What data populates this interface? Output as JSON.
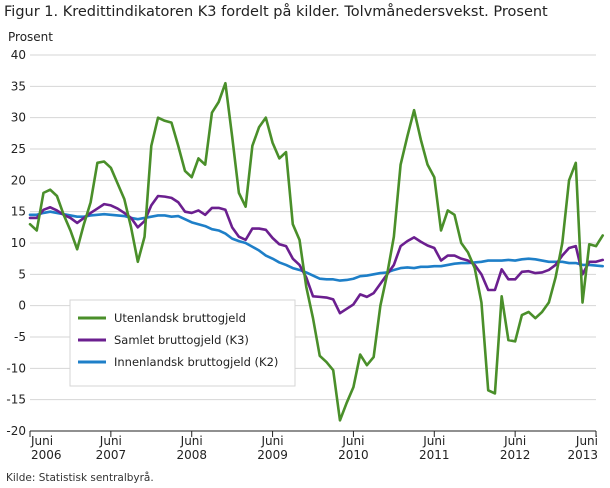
{
  "chart_data": {
    "type": "line",
    "title": "Figur 1. Kredittindikatoren K3 fordelt på kilder. Tolvmånedersvekst. Prosent",
    "ylabel": "Prosent",
    "xlabel": "",
    "source": "Kilde: Statistisk sentralbyrå.",
    "ylim": [
      -20,
      40
    ],
    "yticks": [
      "40",
      "35",
      "30",
      "25",
      "20",
      "15",
      "10",
      "5",
      "0",
      "-5",
      "-10",
      "-15",
      "-20"
    ],
    "x_start": "2006-06",
    "x_end": "2013-06",
    "xticks": [
      {
        "month": "Juni",
        "year": "2006"
      },
      {
        "month": "Juni",
        "year": "2007"
      },
      {
        "month": "Juni",
        "year": "2008"
      },
      {
        "month": "Juni",
        "year": "2009"
      },
      {
        "month": "Juni",
        "year": "2010"
      },
      {
        "month": "Juni",
        "year": "2011"
      },
      {
        "month": "Juni",
        "year": "2012"
      },
      {
        "month": "Juni",
        "year": "2013"
      }
    ],
    "grid": true,
    "legend_position": "bottom-left",
    "series": [
      {
        "name": "Utenlandsk bruttogjeld",
        "color": "#4a8f2a",
        "values": [
          [
            0,
            13
          ],
          [
            1,
            12
          ],
          [
            2,
            18
          ],
          [
            3,
            18.5
          ],
          [
            4,
            17.5
          ],
          [
            5,
            14.5
          ],
          [
            6,
            12
          ],
          [
            7,
            9
          ],
          [
            8,
            13
          ],
          [
            9,
            16.5
          ],
          [
            10,
            22.8
          ],
          [
            11,
            23
          ],
          [
            12,
            22
          ],
          [
            13,
            19.5
          ],
          [
            14,
            17
          ],
          [
            15,
            12.5
          ],
          [
            16,
            7
          ],
          [
            17,
            11
          ],
          [
            18,
            25.5
          ],
          [
            19,
            30
          ],
          [
            20,
            29.5
          ],
          [
            21,
            29.2
          ],
          [
            22,
            25.5
          ],
          [
            23,
            21.5
          ],
          [
            24,
            20.5
          ],
          [
            25,
            23.5
          ],
          [
            26,
            22.5
          ],
          [
            27,
            30.8
          ],
          [
            28,
            32.5
          ],
          [
            29,
            35.5
          ],
          [
            30,
            27
          ],
          [
            31,
            18
          ],
          [
            32,
            15.8
          ],
          [
            33,
            25.5
          ],
          [
            34,
            28.5
          ],
          [
            35,
            30
          ],
          [
            36,
            26
          ],
          [
            37,
            23.5
          ],
          [
            38,
            24.5
          ],
          [
            39,
            13
          ],
          [
            40,
            10.5
          ],
          [
            41,
            3
          ],
          [
            42,
            -2
          ],
          [
            43,
            -8
          ],
          [
            44,
            -9
          ],
          [
            45,
            -10.3
          ],
          [
            46,
            -18.3
          ],
          [
            47,
            -15.5
          ],
          [
            48,
            -13
          ],
          [
            49,
            -7.8
          ],
          [
            50,
            -9.5
          ],
          [
            51,
            -8.2
          ],
          [
            52,
            0
          ],
          [
            53,
            5
          ],
          [
            54,
            11
          ],
          [
            55,
            22.5
          ],
          [
            56,
            27
          ],
          [
            57,
            31.2
          ],
          [
            58,
            26.5
          ],
          [
            59,
            22.5
          ],
          [
            60,
            20.5
          ],
          [
            61,
            12
          ],
          [
            62,
            15.2
          ],
          [
            63,
            14.5
          ],
          [
            64,
            10
          ],
          [
            65,
            8.5
          ],
          [
            66,
            6
          ],
          [
            67,
            0.5
          ],
          [
            68,
            -13.5
          ],
          [
            69,
            -14
          ],
          [
            70,
            1.5
          ],
          [
            71,
            -5.5
          ],
          [
            72,
            -5.7
          ],
          [
            73,
            -1.5
          ],
          [
            74,
            -1
          ],
          [
            75,
            -2
          ],
          [
            76,
            -1
          ],
          [
            77,
            0.5
          ],
          [
            78,
            4.5
          ],
          [
            79,
            10
          ],
          [
            80,
            20
          ],
          [
            81,
            22.8
          ],
          [
            82,
            0.5
          ],
          [
            83,
            9.8
          ],
          [
            84,
            9.5
          ],
          [
            85,
            11.2
          ]
        ]
      },
      {
        "name": "Samlet bruttogjeld (K3)",
        "color": "#6b1f8f",
        "values": [
          [
            0,
            14
          ],
          [
            1,
            14
          ],
          [
            2,
            15.3
          ],
          [
            3,
            15.7
          ],
          [
            4,
            15.2
          ],
          [
            5,
            14.5
          ],
          [
            6,
            14
          ],
          [
            7,
            13.2
          ],
          [
            8,
            14
          ],
          [
            9,
            14.8
          ],
          [
            10,
            15.5
          ],
          [
            11,
            16.2
          ],
          [
            12,
            16
          ],
          [
            13,
            15.5
          ],
          [
            14,
            14.8
          ],
          [
            15,
            14
          ],
          [
            16,
            12.5
          ],
          [
            17,
            13.5
          ],
          [
            18,
            16
          ],
          [
            19,
            17.5
          ],
          [
            20,
            17.4
          ],
          [
            21,
            17.2
          ],
          [
            22,
            16.5
          ],
          [
            23,
            15
          ],
          [
            24,
            14.8
          ],
          [
            25,
            15.2
          ],
          [
            26,
            14.5
          ],
          [
            27,
            15.6
          ],
          [
            28,
            15.6
          ],
          [
            29,
            15.3
          ],
          [
            30,
            12.5
          ],
          [
            31,
            11
          ],
          [
            32,
            10.5
          ],
          [
            33,
            12.3
          ],
          [
            34,
            12.3
          ],
          [
            35,
            12.1
          ],
          [
            36,
            10.8
          ],
          [
            37,
            9.8
          ],
          [
            38,
            9.5
          ],
          [
            39,
            7.5
          ],
          [
            40,
            6.5
          ],
          [
            41,
            4.5
          ],
          [
            42,
            1.5
          ],
          [
            43,
            1.4
          ],
          [
            44,
            1.3
          ],
          [
            45,
            1
          ],
          [
            46,
            -1.2
          ],
          [
            47,
            -0.5
          ],
          [
            48,
            0.2
          ],
          [
            49,
            1.8
          ],
          [
            50,
            1.4
          ],
          [
            51,
            2
          ],
          [
            52,
            3.5
          ],
          [
            53,
            5
          ],
          [
            54,
            6.5
          ],
          [
            55,
            9.5
          ],
          [
            56,
            10.3
          ],
          [
            57,
            10.9
          ],
          [
            58,
            10.2
          ],
          [
            59,
            9.6
          ],
          [
            60,
            9.2
          ],
          [
            61,
            7.2
          ],
          [
            62,
            8
          ],
          [
            63,
            8
          ],
          [
            64,
            7.5
          ],
          [
            65,
            7.2
          ],
          [
            66,
            6.5
          ],
          [
            67,
            5
          ],
          [
            68,
            2.5
          ],
          [
            69,
            2.5
          ],
          [
            70,
            5.8
          ],
          [
            71,
            4.2
          ],
          [
            72,
            4.2
          ],
          [
            73,
            5.4
          ],
          [
            74,
            5.5
          ],
          [
            75,
            5.2
          ],
          [
            76,
            5.3
          ],
          [
            77,
            5.7
          ],
          [
            78,
            6.5
          ],
          [
            79,
            8
          ],
          [
            80,
            9.2
          ],
          [
            81,
            9.5
          ],
          [
            82,
            5
          ],
          [
            83,
            7
          ],
          [
            84,
            7
          ],
          [
            85,
            7.3
          ]
        ]
      },
      {
        "name": "Innenlandsk bruttogjeld (K2)",
        "color": "#1e7fc8",
        "values": [
          [
            0,
            14.5
          ],
          [
            1,
            14.5
          ],
          [
            2,
            14.8
          ],
          [
            3,
            15
          ],
          [
            4,
            14.8
          ],
          [
            5,
            14.6
          ],
          [
            6,
            14.4
          ],
          [
            7,
            14.2
          ],
          [
            8,
            14.2
          ],
          [
            9,
            14.4
          ],
          [
            10,
            14.5
          ],
          [
            11,
            14.6
          ],
          [
            12,
            14.5
          ],
          [
            13,
            14.4
          ],
          [
            14,
            14.3
          ],
          [
            15,
            14
          ],
          [
            16,
            13.8
          ],
          [
            17,
            14
          ],
          [
            18,
            14.2
          ],
          [
            19,
            14.4
          ],
          [
            20,
            14.4
          ],
          [
            21,
            14.2
          ],
          [
            22,
            14.3
          ],
          [
            23,
            13.8
          ],
          [
            24,
            13.3
          ],
          [
            25,
            13
          ],
          [
            26,
            12.7
          ],
          [
            27,
            12.2
          ],
          [
            28,
            12
          ],
          [
            29,
            11.5
          ],
          [
            30,
            10.7
          ],
          [
            31,
            10.3
          ],
          [
            32,
            10
          ],
          [
            33,
            9.4
          ],
          [
            34,
            8.8
          ],
          [
            35,
            8
          ],
          [
            36,
            7.5
          ],
          [
            37,
            6.9
          ],
          [
            38,
            6.5
          ],
          [
            39,
            6
          ],
          [
            40,
            5.7
          ],
          [
            41,
            5.3
          ],
          [
            42,
            4.8
          ],
          [
            43,
            4.3
          ],
          [
            44,
            4.2
          ],
          [
            45,
            4.2
          ],
          [
            46,
            4
          ],
          [
            47,
            4.1
          ],
          [
            48,
            4.3
          ],
          [
            49,
            4.7
          ],
          [
            50,
            4.8
          ],
          [
            51,
            5
          ],
          [
            52,
            5.2
          ],
          [
            53,
            5.3
          ],
          [
            54,
            5.7
          ],
          [
            55,
            6
          ],
          [
            56,
            6.1
          ],
          [
            57,
            6
          ],
          [
            58,
            6.2
          ],
          [
            59,
            6.2
          ],
          [
            60,
            6.3
          ],
          [
            61,
            6.3
          ],
          [
            62,
            6.5
          ],
          [
            63,
            6.7
          ],
          [
            64,
            6.8
          ],
          [
            65,
            6.8
          ],
          [
            66,
            6.9
          ],
          [
            67,
            7
          ],
          [
            68,
            7.2
          ],
          [
            69,
            7.2
          ],
          [
            70,
            7.2
          ],
          [
            71,
            7.3
          ],
          [
            72,
            7.2
          ],
          [
            73,
            7.4
          ],
          [
            74,
            7.5
          ],
          [
            75,
            7.4
          ],
          [
            76,
            7.2
          ],
          [
            77,
            7
          ],
          [
            78,
            7
          ],
          [
            79,
            7
          ],
          [
            80,
            6.8
          ],
          [
            81,
            6.8
          ],
          [
            82,
            6.5
          ],
          [
            83,
            6.5
          ],
          [
            84,
            6.4
          ],
          [
            85,
            6.3
          ]
        ]
      }
    ]
  }
}
